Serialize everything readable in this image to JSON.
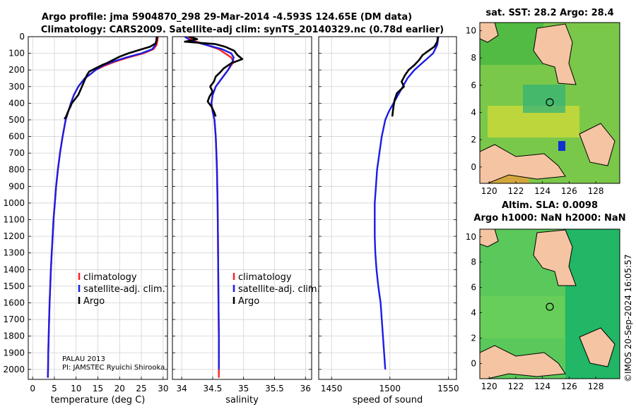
{
  "title": {
    "line1": "Argo profile: jma 5904870_298 29-Mar-2014 -4.593S 124.65E (DM data)",
    "line2": "Climatology: CARS2009. Satellite-adj clim: synTS_20140329.nc (0.78d earlier)"
  },
  "colors": {
    "climatology": "#ff2020",
    "satellite": "#1c1ce6",
    "argo": "#000000",
    "land": "#f5c4a2",
    "ocean_deep": "#0a9e5e"
  },
  "legend": {
    "climatology": "climatology",
    "satellite": "satellite-adj. clim.",
    "argo": "Argo"
  },
  "platform_note": {
    "line1": "PALAU 2013",
    "line2": "PI: JAMSTEC Ryuichi Shirooka"
  },
  "depth_ticks": [
    0,
    100,
    200,
    300,
    400,
    500,
    600,
    700,
    800,
    900,
    1000,
    1100,
    1200,
    1300,
    1400,
    1500,
    1600,
    1700,
    1800,
    1900,
    2000
  ],
  "chart_data": [
    {
      "type": "line",
      "name": "temperature",
      "xlabel": "temperature (deg C)",
      "xlim": [
        -1,
        31
      ],
      "ylim": [
        2060,
        0
      ],
      "xticks": [
        0,
        5,
        10,
        15,
        20,
        25,
        30
      ],
      "series": [
        {
          "name": "climatology",
          "x": [
            28.8,
            28.7,
            28.5,
            27.8,
            25.5,
            22,
            19,
            16.5,
            14.5,
            13.3,
            12,
            10.5,
            9.5,
            8.8,
            8.2,
            7.6,
            6.9,
            6.3,
            5.8,
            5.4,
            5.1,
            4.8,
            4.6,
            4.4,
            4.2,
            4.05,
            3.9,
            3.8,
            3.7,
            3.6,
            3.55,
            3.5
          ],
          "y": [
            0,
            25,
            50,
            75,
            100,
            125,
            150,
            175,
            200,
            225,
            250,
            300,
            350,
            400,
            450,
            500,
            600,
            700,
            800,
            900,
            1000,
            1100,
            1200,
            1300,
            1400,
            1500,
            1600,
            1700,
            1800,
            1900,
            2000,
            2050
          ]
        },
        {
          "name": "satellite-adj. clim.",
          "x": [
            28.5,
            28.4,
            28.2,
            27.5,
            25,
            21.5,
            18.5,
            16,
            14.5,
            13.3,
            12,
            10.5,
            9.5,
            8.8,
            8.2,
            7.6,
            6.9,
            6.3,
            5.8,
            5.4,
            5.1,
            4.8,
            4.6,
            4.4,
            4.2,
            4.05,
            3.9,
            3.8,
            3.7,
            3.6,
            3.55,
            3.5
          ],
          "y": [
            0,
            25,
            50,
            75,
            100,
            125,
            150,
            175,
            200,
            225,
            250,
            300,
            350,
            400,
            450,
            500,
            600,
            700,
            800,
            900,
            1000,
            1100,
            1200,
            1300,
            1400,
            1500,
            1600,
            1700,
            1800,
            1900,
            2000,
            2050
          ]
        },
        {
          "name": "Argo",
          "x": [
            28.6,
            28.5,
            28.3,
            27.0,
            24.5,
            22,
            20,
            18.5,
            17,
            16,
            14.5,
            13,
            12.5,
            12,
            11.5,
            11,
            10.5,
            9.6,
            9,
            8.7,
            8.3,
            8,
            7.7,
            7.3
          ],
          "y": [
            0,
            20,
            40,
            60,
            80,
            100,
            120,
            140,
            160,
            170,
            190,
            210,
            230,
            260,
            290,
            320,
            350,
            380,
            400,
            420,
            440,
            460,
            480,
            495
          ]
        }
      ]
    },
    {
      "type": "line",
      "name": "salinity",
      "xlabel": "salinity",
      "xlim": [
        33.85,
        36.1
      ],
      "ylim": [
        2060,
        0
      ],
      "xticks": [
        34,
        34.5,
        35,
        35.5,
        36
      ],
      "series": [
        {
          "name": "climatology",
          "x": [
            34.1,
            34.2,
            34.4,
            34.6,
            34.7,
            34.8,
            34.84,
            34.75,
            34.65,
            34.55,
            34.5,
            34.48,
            34.5,
            34.53,
            34.55,
            34.56,
            34.57,
            34.58,
            34.585,
            34.59,
            34.595,
            34.6,
            34.6,
            34.6,
            34.6
          ],
          "y": [
            0,
            25,
            50,
            75,
            100,
            125,
            150,
            200,
            250,
            300,
            350,
            400,
            450,
            500,
            600,
            700,
            800,
            1000,
            1200,
            1400,
            1600,
            1800,
            1900,
            2000,
            2050
          ]
        },
        {
          "name": "satellite-adj. clim.",
          "x": [
            34.05,
            34.15,
            34.4,
            34.65,
            34.8,
            34.84,
            34.82,
            34.75,
            34.65,
            34.55,
            34.5,
            34.48,
            34.5,
            34.53,
            34.55,
            34.56,
            34.57,
            34.58,
            34.585,
            34.59,
            34.595,
            34.6,
            34.6,
            34.6
          ],
          "y": [
            0,
            25,
            50,
            75,
            100,
            125,
            150,
            200,
            250,
            300,
            350,
            400,
            450,
            500,
            600,
            700,
            800,
            1000,
            1200,
            1400,
            1600,
            1800,
            1900,
            2000
          ]
        },
        {
          "name": "Argo",
          "x": [
            34.12,
            34.25,
            34.05,
            34.55,
            34.7,
            34.85,
            34.9,
            34.98,
            34.8,
            34.68,
            34.62,
            34.55,
            34.52,
            34.46,
            34.5,
            34.45,
            34.42,
            34.48,
            34.52,
            34.55
          ],
          "y": [
            0,
            15,
            30,
            45,
            60,
            85,
            110,
            135,
            160,
            190,
            215,
            240,
            270,
            300,
            330,
            360,
            390,
            420,
            450,
            480
          ]
        }
      ]
    },
    {
      "type": "line",
      "name": "speed of sound",
      "xlabel": "speed of sound",
      "xlim": [
        1439,
        1557
      ],
      "ylim": [
        2060,
        0
      ],
      "xticks": [
        1450,
        1500,
        1550
      ],
      "series": [
        {
          "name": "satellite-adj. clim.",
          "x": [
            1541.5,
            1540.5,
            1537,
            1529,
            1521,
            1515,
            1511,
            1507,
            1503,
            1499,
            1496,
            1493,
            1491,
            1489,
            1488,
            1487,
            1487,
            1487,
            1487.5,
            1488.5,
            1490,
            1492,
            1494,
            1496
          ],
          "y": [
            0,
            50,
            100,
            150,
            200,
            250,
            300,
            350,
            400,
            450,
            500,
            600,
            700,
            800,
            900,
            1000,
            1100,
            1200,
            1300,
            1400,
            1500,
            1600,
            1800,
            2000
          ]
        },
        {
          "name": "Argo",
          "x": [
            1541,
            1540.5,
            1538,
            1532,
            1528,
            1525,
            1521,
            1516,
            1513,
            1510,
            1512,
            1506,
            1504,
            1503,
            1502
          ],
          "y": [
            0,
            30,
            60,
            90,
            110,
            140,
            170,
            200,
            230,
            270,
            300,
            340,
            380,
            420,
            480
          ]
        }
      ]
    }
  ],
  "maps": [
    {
      "name": "sst",
      "title": "sat. SST: 28.2 Argo: 28.4",
      "xticks": [
        "120",
        "122",
        "124",
        "126",
        "128"
      ],
      "yticks": [
        "0",
        "2",
        "4",
        "6",
        "8",
        "10"
      ]
    },
    {
      "name": "sla",
      "title_line1": "Altim. SLA: 0.0098",
      "title_line2": "Argo h1000: NaN h2000: NaN",
      "xticks": [
        "120",
        "122",
        "124",
        "126",
        "128"
      ],
      "yticks": [
        "0",
        "2",
        "4",
        "6",
        "8",
        "10"
      ]
    }
  ],
  "side_label": "©IMOS 20-Sep-2024 16:05:57"
}
